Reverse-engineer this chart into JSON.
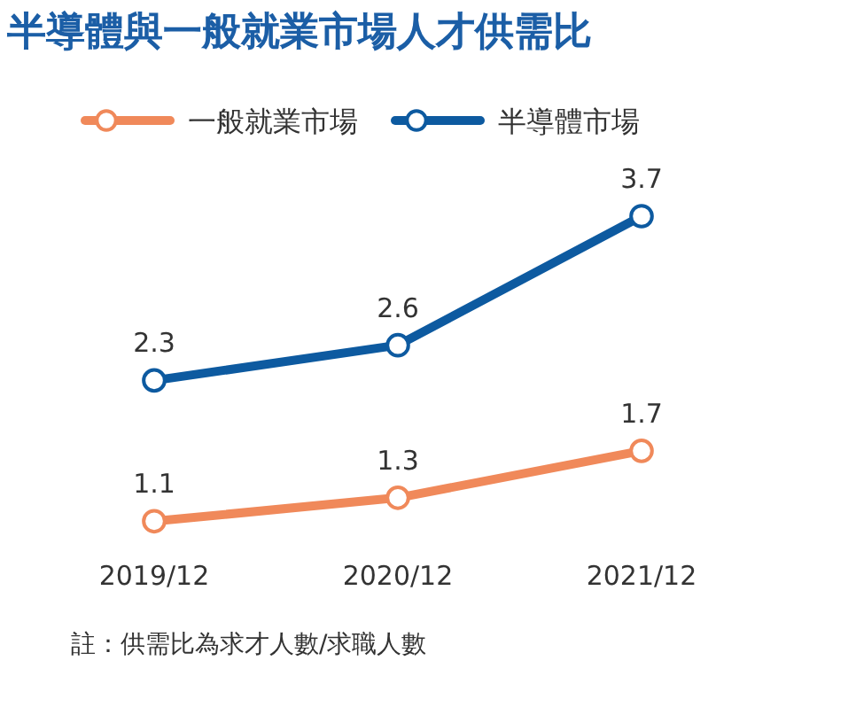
{
  "chart_data": {
    "type": "line",
    "title": "半導體與一般就業市場人才供需比",
    "categories": [
      "2019/12",
      "2020/12",
      "2021/12"
    ],
    "series": [
      {
        "name": "一般就業市場",
        "color": "#f0895a",
        "values": [
          1.1,
          1.3,
          1.7
        ]
      },
      {
        "name": "半導體市場",
        "color": "#0d5aa0",
        "values": [
          2.3,
          2.6,
          3.7
        ]
      }
    ],
    "data_labels": true,
    "marker": "circle",
    "legend": "top",
    "grid": false,
    "tick_labels": "x",
    "annotations": [
      "註：供需比為求才人數/求職人數"
    ]
  }
}
